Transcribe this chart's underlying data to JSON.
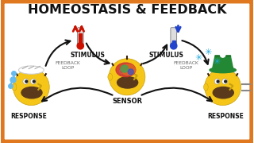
{
  "title": "HOMEOSTASIS & FEEDBACK",
  "title_fontsize": 11.5,
  "title_color": "#111111",
  "bg_color": "#ffffff",
  "border_color": "#e07820",
  "border_lw": 5,
  "labels": {
    "stimulus_left": "STIMULUS",
    "stimulus_right": "STIMULUS",
    "sensor": "SENSOR",
    "response_left": "RESPONSE",
    "response_right": "RESPONSE",
    "feedback_left": "FEEDBACK\nLOOP",
    "feedback_right": "FEEDBACK\nLOOP"
  },
  "label_fontsize": 5.5,
  "label_color": "#111111",
  "arrow_color": "#111111",
  "hot_color": "#cc1100",
  "cold_color": "#2244cc",
  "snowflake_color": "#22aadd",
  "homer_skin": "#f5c518",
  "homer_beard": "#5a3a1a",
  "homer_hair": "#3a2008",
  "hat_white": "#eeeeee",
  "hat_green": "#228833",
  "brain_red": "#cc3333",
  "brain_orange": "#dd6622",
  "brain_green": "#33aa55",
  "brain_blue": "#3355cc",
  "sweat_color": "#66bbee",
  "cold_lines": "#888888",
  "thermo_body": "#dddddd",
  "thermo_border": "#888888"
}
